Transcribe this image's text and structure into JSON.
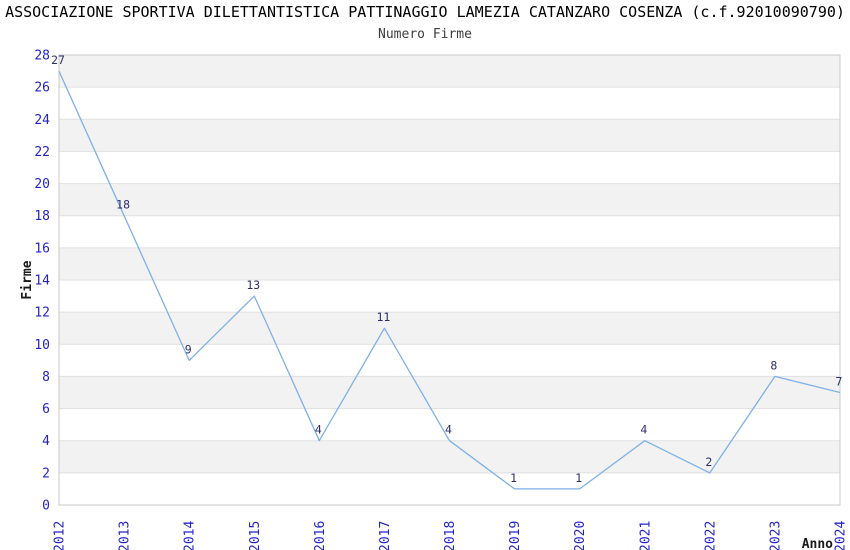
{
  "chart_data": {
    "type": "line",
    "title": "ASSOCIAZIONE SPORTIVA DILETTANTISTICA PATTINAGGIO LAMEZIA CATANZARO COSENZA (c.f.92010090790)",
    "subtitle": "Numero Firme",
    "xlabel": "Anno",
    "ylabel": "Firme",
    "categories": [
      "2012",
      "2013",
      "2014",
      "2015",
      "2016",
      "2017",
      "2018",
      "2019",
      "2020",
      "2021",
      "2022",
      "2023",
      "2024"
    ],
    "values": [
      27,
      18,
      9,
      13,
      4,
      11,
      4,
      1,
      1,
      4,
      2,
      8,
      7
    ],
    "ylim": [
      0,
      28
    ],
    "ytick_step": 2,
    "yticks": [
      0,
      2,
      4,
      6,
      8,
      10,
      12,
      14,
      16,
      18,
      20,
      22,
      24,
      26,
      28
    ],
    "grid": "horizontal",
    "banding": "alternating 2-unit horizontal gray bands (26-28, 22-24, 18-20, 14-16, 10-12, 6-8, 2-4)",
    "legend": "none",
    "point_labels_shown": true,
    "colors": {
      "line": "#7fb0e8",
      "tick_label": "#2323cc",
      "data_label": "#2e2e6e",
      "band": "#f2f2f2",
      "gridline": "#e0e0e0",
      "plot_border": "#c9c9c9",
      "title": "#000000",
      "subtitle": "#3d3d3d",
      "axis_title": "#1a1a1a",
      "background": "#ffffff"
    }
  }
}
